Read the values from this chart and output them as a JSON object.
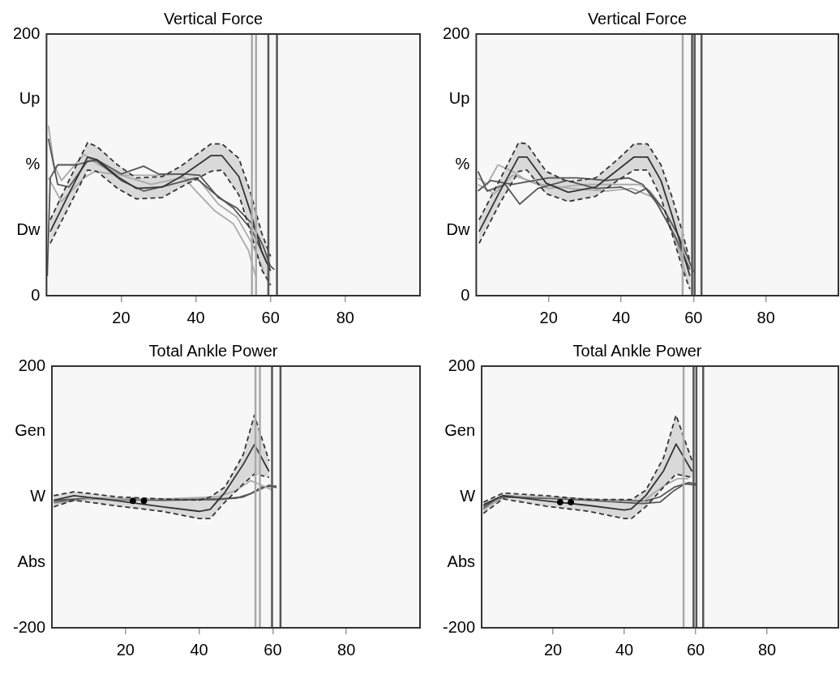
{
  "chart_data": [
    {
      "type": "line",
      "title": "Vertical Force",
      "xlim": [
        0,
        100
      ],
      "xticks": [
        20,
        40,
        60,
        80
      ],
      "ylim": [
        0,
        200
      ],
      "yticks": [
        0,
        {
          "value": 50,
          "label": "Dw"
        },
        {
          "value": 100,
          "label": "%"
        },
        {
          "value": 150,
          "label": "Up"
        },
        200
      ],
      "grid": false,
      "legend": false,
      "marker": "none",
      "line_style": "solid",
      "ref_lines": [
        {
          "axis": "x",
          "value": 55,
          "color": "#aaaaaa"
        },
        {
          "axis": "x",
          "value": 56.1,
          "color": "#aaaaaa"
        },
        {
          "axis": "x",
          "value": 59.4,
          "color": "#555555"
        },
        {
          "axis": "x",
          "value": 61.7,
          "color": "#555555"
        }
      ],
      "series": [
        {
          "color": "#333333",
          "x": [
            1,
            6,
            11,
            13.5,
            19,
            24,
            31,
            36,
            44,
            47,
            51.5,
            54.5,
            57.6,
            60
          ],
          "values": [
            49,
            78,
            106,
            104,
            91,
            82,
            83,
            91,
            107,
            107,
            91,
            65,
            34,
            19
          ],
          "lower": [
            40,
            68,
            96,
            95,
            82,
            74,
            75,
            83,
            95,
            96,
            77,
            50,
            20,
            8
          ],
          "upper": [
            58,
            88,
            117,
            114,
            100,
            90,
            91,
            99,
            116,
            116,
            105,
            80,
            48,
            30
          ]
        },
        {
          "color": "#333333",
          "line_style": "dashed",
          "x": [
            1,
            6,
            11,
            13.5,
            19,
            24,
            31,
            36,
            44,
            47,
            51.5,
            54.5,
            57.6,
            60
          ],
          "values": [
            40,
            68,
            96,
            95,
            82,
            74,
            75,
            83,
            95,
            96,
            77,
            50,
            20,
            8
          ]
        },
        {
          "color": "#333333",
          "line_style": "dashed",
          "x": [
            1,
            6,
            11,
            13.5,
            19,
            24,
            31,
            36,
            44,
            47,
            51.5,
            54.5,
            57.6,
            60
          ],
          "values": [
            58,
            88,
            117,
            114,
            100,
            90,
            91,
            99,
            116,
            116,
            105,
            80,
            48,
            30
          ]
        },
        {
          "color": "#555555",
          "x": [
            0.5,
            3,
            6,
            11,
            14,
            20,
            26,
            30,
            37,
            41,
            46,
            51,
            55,
            58,
            60
          ],
          "values": [
            120,
            85,
            83,
            103,
            103,
            93,
            99,
            93,
            93,
            92,
            75,
            67,
            55,
            38,
            22
          ]
        },
        {
          "color": "#555555",
          "x": [
            0.2,
            1,
            3,
            8,
            13,
            20,
            26,
            32,
            40,
            45,
            50,
            55,
            59,
            61
          ],
          "values": [
            15,
            90,
            100,
            100,
            104,
            88,
            80,
            84,
            90,
            78,
            67,
            50,
            25,
            20
          ]
        },
        {
          "color": "#aaaaaa",
          "x": [
            0.5,
            2,
            4,
            10,
            14,
            20,
            30,
            36,
            40,
            45,
            50,
            54,
            56
          ],
          "values": [
            130,
            100,
            88,
            108,
            100,
            92,
            92,
            93,
            80,
            65,
            55,
            35,
            15
          ]
        },
        {
          "color": "#aaaaaa",
          "x": [
            0.5,
            4,
            10,
            13,
            20,
            28,
            36,
            41,
            46,
            51,
            55,
            58
          ],
          "values": [
            90,
            72,
            90,
            95,
            92,
            85,
            90,
            88,
            70,
            60,
            40,
            20
          ]
        }
      ]
    },
    {
      "type": "line",
      "title": "Vertical Force",
      "xlim": [
        0,
        100
      ],
      "xticks": [
        20,
        40,
        60,
        80
      ],
      "ylim": [
        0,
        200
      ],
      "yticks": [
        0,
        {
          "value": 50,
          "label": "Dw"
        },
        {
          "value": 100,
          "label": "%"
        },
        {
          "value": 150,
          "label": "Up"
        },
        200
      ],
      "grid": false,
      "legend": false,
      "marker": "none",
      "line_style": "solid",
      "ref_lines": [
        {
          "axis": "x",
          "value": 57,
          "color": "#aaaaaa"
        },
        {
          "axis": "x",
          "value": 59.6,
          "color": "#555555"
        },
        {
          "axis": "x",
          "value": 60.3,
          "color": "#555555"
        },
        {
          "axis": "x",
          "value": 62.2,
          "color": "#555555"
        }
      ],
      "series": [
        {
          "color": "#333333",
          "x": [
            0.8,
            6.4,
            11.7,
            14,
            19.3,
            25.4,
            33,
            39,
            43.6,
            47.3,
            51,
            54,
            57,
            59
          ],
          "values": [
            49,
            79,
            106,
            106,
            86,
            79,
            83,
            96,
            106,
            106,
            88,
            62,
            34,
            15
          ],
          "lower": [
            40,
            70,
            95,
            96,
            78,
            72,
            76,
            88,
            96,
            96,
            75,
            48,
            20,
            5
          ],
          "upper": [
            58,
            88,
            117,
            116,
            95,
            87,
            90,
            104,
            116,
            116,
            100,
            76,
            48,
            26
          ]
        },
        {
          "color": "#333333",
          "line_style": "dashed",
          "x": [
            0.8,
            6.4,
            11.7,
            14,
            19.3,
            25.4,
            33,
            39,
            43.6,
            47.3,
            51,
            54,
            57,
            59
          ],
          "values": [
            40,
            70,
            95,
            96,
            78,
            72,
            76,
            88,
            96,
            96,
            75,
            48,
            20,
            5
          ]
        },
        {
          "color": "#333333",
          "line_style": "dashed",
          "x": [
            0.8,
            6.4,
            11.7,
            14,
            19.3,
            25.4,
            33,
            39,
            43.6,
            47.3,
            51,
            54,
            57,
            59
          ],
          "values": [
            58,
            88,
            117,
            116,
            95,
            87,
            90,
            104,
            116,
            116,
            100,
            76,
            48,
            26
          ]
        },
        {
          "color": "#555555",
          "x": [
            0.5,
            3,
            8,
            12,
            17,
            25,
            33,
            40,
            44,
            47,
            52,
            56,
            59,
            60
          ],
          "values": [
            95,
            80,
            85,
            70,
            82,
            88,
            82,
            83,
            78,
            82,
            65,
            45,
            25,
            18
          ]
        },
        {
          "color": "#555555",
          "x": [
            0.5,
            4,
            10,
            20,
            28,
            36,
            42,
            46,
            50,
            55,
            59
          ],
          "values": [
            80,
            88,
            85,
            90,
            90,
            88,
            90,
            85,
            70,
            45,
            20
          ]
        },
        {
          "color": "#aaaaaa",
          "x": [
            0.5,
            3,
            6,
            10,
            14,
            20,
            30,
            40,
            45,
            48,
            52,
            56,
            58
          ],
          "values": [
            90,
            85,
            100,
            95,
            88,
            82,
            85,
            85,
            85,
            80,
            65,
            35,
            15
          ]
        },
        {
          "color": "#aaaaaa",
          "x": [
            0.5,
            5,
            10,
            18,
            26,
            36,
            43,
            49,
            53,
            57,
            59
          ],
          "values": [
            85,
            78,
            92,
            85,
            82,
            80,
            82,
            75,
            55,
            30,
            20
          ]
        }
      ]
    },
    {
      "type": "line",
      "title": "Total Ankle Power",
      "xlim": [
        0,
        100
      ],
      "xticks": [
        20,
        40,
        60,
        80
      ],
      "ylim": [
        -200,
        200
      ],
      "yticks": [
        -200,
        {
          "value": -100,
          "label": "Abs"
        },
        {
          "value": 0,
          "label": "W"
        },
        {
          "value": 100,
          "label": "Gen"
        },
        200
      ],
      "grid": false,
      "legend": false,
      "marker": "none",
      "line_style": "solid",
      "ref_lines": [
        {
          "axis": "x",
          "value": 55.3,
          "color": "#aaaaaa"
        },
        {
          "axis": "x",
          "value": 56.5,
          "color": "#aaaaaa"
        },
        {
          "axis": "x",
          "value": 59.8,
          "color": "#555555"
        },
        {
          "axis": "x",
          "value": 62.1,
          "color": "#555555"
        }
      ],
      "series": [
        {
          "color": "#333333",
          "x": [
            0.5,
            6,
            18,
            30,
            40,
            43,
            47,
            52,
            55,
            59
          ],
          "values": [
            -5,
            2,
            -6,
            -15,
            -22,
            -19,
            7,
            50,
            80,
            39
          ],
          "lower": [
            -15,
            -5,
            -14,
            -22,
            -33,
            -33,
            -8,
            20,
            35,
            30
          ],
          "upper": [
            2,
            8,
            0,
            -3,
            -5,
            0,
            15,
            65,
            125,
            55
          ]
        },
        {
          "color": "#333333",
          "line_style": "dashed",
          "x": [
            0.5,
            6,
            18,
            30,
            40,
            43,
            47,
            52,
            55,
            59
          ],
          "values": [
            -15,
            -5,
            -14,
            -22,
            -33,
            -33,
            -8,
            20,
            35,
            30
          ]
        },
        {
          "color": "#333333",
          "line_style": "dashed",
          "x": [
            0.5,
            6,
            18,
            30,
            40,
            43,
            47,
            52,
            55,
            59
          ],
          "values": [
            2,
            8,
            0,
            -3,
            -5,
            0,
            15,
            65,
            125,
            55
          ]
        },
        {
          "color": "#aaaaaa",
          "x": [
            0.5,
            10,
            30,
            45,
            50,
            54,
            57,
            60
          ],
          "values": [
            -10,
            -3,
            -3,
            0,
            10,
            25,
            18,
            10
          ]
        },
        {
          "color": "#555555",
          "x": [
            0.5,
            10,
            30,
            45,
            50,
            54,
            57,
            61
          ],
          "values": [
            -5,
            -2,
            -4,
            -3,
            -2,
            5,
            15,
            17
          ]
        },
        {
          "color": "#555555",
          "x": [
            0.5,
            10,
            30,
            45,
            52,
            56,
            59,
            61
          ],
          "values": [
            -8,
            -3,
            -5,
            -4,
            0,
            10,
            18,
            14
          ]
        },
        {
          "type": "scatter",
          "marker": "circle",
          "color": "#000000",
          "x": [
            22,
            25
          ],
          "values": [
            -6,
            -6
          ]
        }
      ]
    },
    {
      "type": "line",
      "title": "Total Ankle Power",
      "xlim": [
        0,
        100
      ],
      "xticks": [
        20,
        40,
        60,
        80
      ],
      "ylim": [
        -200,
        200
      ],
      "yticks": [
        -200,
        {
          "value": -100,
          "label": "Abs"
        },
        {
          "value": 0,
          "label": "W"
        },
        {
          "value": 100,
          "label": "Gen"
        },
        200
      ],
      "grid": false,
      "legend": false,
      "marker": "none",
      "line_style": "solid",
      "ref_lines": [
        {
          "axis": "x",
          "value": 56.6,
          "color": "#aaaaaa"
        },
        {
          "axis": "x",
          "value": 59.4,
          "color": "#555555"
        },
        {
          "axis": "x",
          "value": 60.2,
          "color": "#555555"
        },
        {
          "axis": "x",
          "value": 62.1,
          "color": "#555555"
        }
      ],
      "series": [
        {
          "color": "#333333",
          "x": [
            0.5,
            6,
            18,
            30,
            40,
            42,
            46,
            51,
            54.5,
            59
          ],
          "values": [
            -12,
            2,
            -6,
            -13,
            -20,
            -18,
            2,
            40,
            81,
            39
          ],
          "lower": [
            -25,
            -3,
            -14,
            -22,
            -33,
            -33,
            -15,
            15,
            35,
            30
          ],
          "upper": [
            -8,
            6,
            2,
            -4,
            -4,
            -4,
            10,
            60,
            125,
            55
          ]
        },
        {
          "color": "#333333",
          "line_style": "dashed",
          "x": [
            0.5,
            6,
            18,
            30,
            40,
            42,
            46,
            51,
            54.5,
            59
          ],
          "values": [
            -25,
            -3,
            -14,
            -22,
            -33,
            -33,
            -15,
            15,
            35,
            30
          ]
        },
        {
          "color": "#333333",
          "line_style": "dashed",
          "x": [
            0.5,
            6,
            18,
            30,
            40,
            42,
            46,
            51,
            54.5,
            59
          ],
          "values": [
            -8,
            6,
            2,
            -4,
            -4,
            -4,
            10,
            60,
            125,
            55
          ]
        },
        {
          "color": "#aaaaaa",
          "x": [
            0.5,
            6,
            30,
            45,
            48,
            52,
            55,
            58
          ],
          "values": [
            -20,
            2,
            -3,
            -8,
            5,
            20,
            28,
            28
          ]
        },
        {
          "color": "#555555",
          "x": [
            0.5,
            6,
            30,
            45,
            50,
            54,
            57,
            60
          ],
          "values": [
            -15,
            2,
            -5,
            -10,
            -8,
            10,
            20,
            18
          ]
        },
        {
          "color": "#555555",
          "x": [
            0.5,
            6,
            30,
            46,
            50,
            54,
            58,
            60
          ],
          "values": [
            -18,
            0,
            -4,
            -6,
            0,
            15,
            22,
            20
          ]
        },
        {
          "type": "scatter",
          "marker": "circle",
          "color": "#000000",
          "x": [
            22,
            25
          ],
          "values": [
            -8,
            -8
          ]
        }
      ]
    }
  ]
}
